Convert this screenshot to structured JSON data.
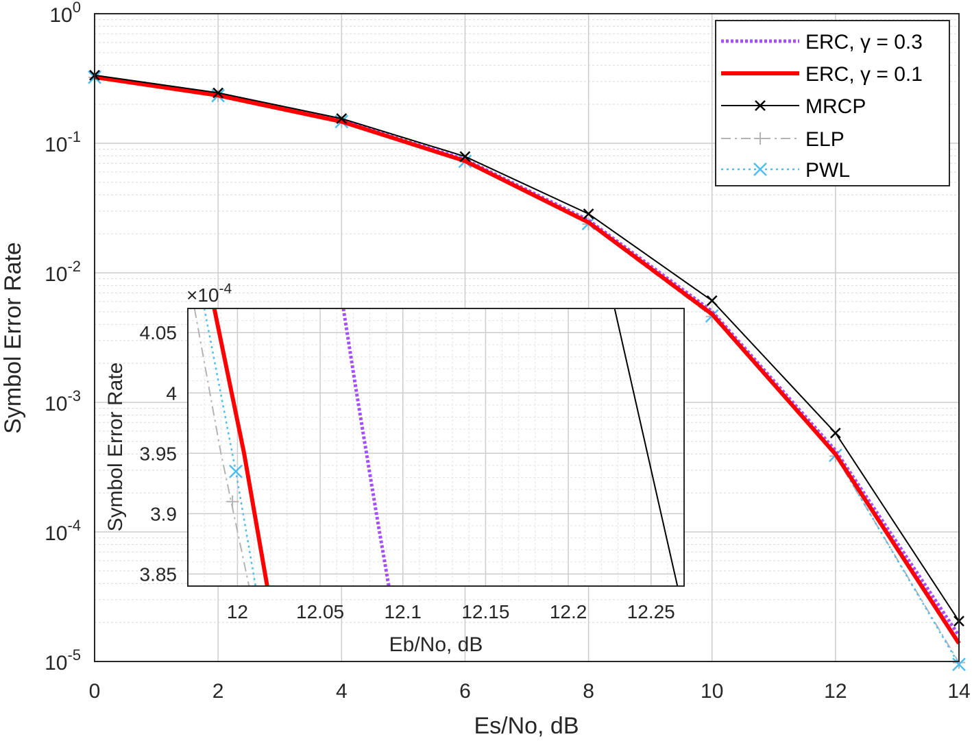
{
  "chart_data": [
    {
      "type": "line",
      "xlabel": "Es/No, dB",
      "ylabel": "Symbol Error Rate",
      "xlim": [
        0,
        14
      ],
      "ylim": [
        1e-05,
        1
      ],
      "yscale": "log",
      "grid": true,
      "minor_grid": true,
      "legend_position": "top-right",
      "x_ticks": [
        "0",
        "2",
        "4",
        "6",
        "8",
        "10",
        "12",
        "14"
      ],
      "y_ticks": [
        {
          "base": "10",
          "exp": "0"
        },
        {
          "base": "10",
          "exp": "-1"
        },
        {
          "base": "10",
          "exp": "-2"
        },
        {
          "base": "10",
          "exp": "-3"
        },
        {
          "base": "10",
          "exp": "-4"
        },
        {
          "base": "10",
          "exp": "-5"
        }
      ],
      "x": [
        0,
        2,
        4,
        6,
        8,
        10,
        12,
        14
      ],
      "series": [
        {
          "name": "ERC, γ = 0.3",
          "color": "#a64dff",
          "style": "dotted-thick",
          "values": [
            0.326,
            0.236,
            0.149,
            0.075,
            0.0255,
            0.00505,
            0.000425,
            1.58e-05
          ]
        },
        {
          "name": "ERC, γ = 0.1",
          "color": "#ff0000",
          "style": "solid-thick",
          "values": [
            0.324,
            0.234,
            0.147,
            0.073,
            0.0245,
            0.0048,
            0.000398,
            1.38e-05
          ]
        },
        {
          "name": "MRCP",
          "color": "#000000",
          "style": "solid-x",
          "values": [
            0.335,
            0.245,
            0.155,
            0.079,
            0.0285,
            0.0061,
            0.00058,
            2.05e-05
          ]
        },
        {
          "name": "ELP",
          "color": "#b3b3b3",
          "style": "dashdot-plus",
          "values": [
            0.322,
            0.232,
            0.146,
            0.072,
            0.0238,
            0.0046,
            0.000385,
            9.8e-06
          ]
        },
        {
          "name": "PWL",
          "color": "#4dbeee",
          "style": "dotted-x",
          "values": [
            0.323,
            0.233,
            0.147,
            0.0725,
            0.024,
            0.00465,
            0.00039,
            9.5e-06
          ]
        }
      ]
    },
    {
      "type": "line",
      "xlabel": "Eb/No, dB",
      "ylabel": "Symbol Error Rate",
      "xlim": [
        11.97,
        12.27
      ],
      "ylim": [
        3.84,
        4.07
      ],
      "y_multiplier": {
        "prefix": "×10",
        "exp": "-4"
      },
      "grid": true,
      "x_ticks": [
        "12",
        "12.05",
        "12.1",
        "12.15",
        "12.2",
        "12.25"
      ],
      "y_ticks": [
        "3.85",
        "3.9",
        "3.95",
        "4",
        "4.05"
      ],
      "series": [
        {
          "name": "ERC, γ = 0.3",
          "color": "#a64dff",
          "points": [
            [
              12.064,
              4.07
            ],
            [
              12.072,
              4.0
            ],
            [
              12.084,
              3.9
            ],
            [
              12.0915,
              3.84
            ]
          ]
        },
        {
          "name": "ERC, γ = 0.1",
          "color": "#ff0000",
          "points": [
            [
              11.986,
              4.07
            ],
            [
              11.998,
              3.99
            ],
            [
              12.004,
              3.95
            ],
            [
              12.018,
              3.84
            ]
          ]
        },
        {
          "name": "MRCP",
          "color": "#000000",
          "points": [
            [
              12.228,
              4.07
            ],
            [
              12.266,
              3.84
            ]
          ]
        },
        {
          "name": "ELP",
          "color": "#b3b3b3",
          "points": [
            [
              11.974,
              4.07
            ],
            [
              11.99,
              3.95
            ],
            [
              12.007,
              3.84
            ]
          ]
        },
        {
          "name": "PWL",
          "color": "#4dbeee",
          "points": [
            [
              11.98,
              4.07
            ],
            [
              11.999,
              3.935
            ],
            [
              12.011,
              3.84
            ]
          ]
        }
      ]
    }
  ]
}
